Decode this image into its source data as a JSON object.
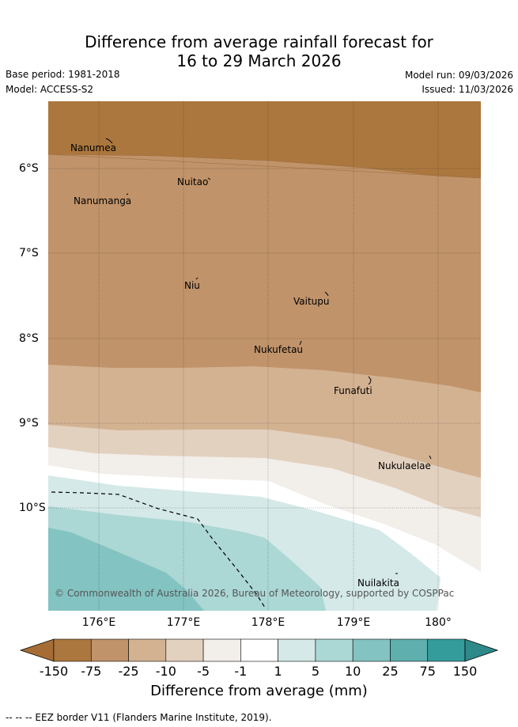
{
  "title_line1": "Difference from average rainfall forecast for",
  "title_line2": "16 to 29 March 2026",
  "base_period": "Base period: 1981-2018",
  "model": "Model: ACCESS-S2",
  "model_run": "Model run: 09/03/2026",
  "issued": "Issued: 11/03/2026",
  "places": {
    "nanumea": "Nanumea",
    "nuitao": "Nuitao",
    "nanumanga": "Nanumanga",
    "niu": "Niu",
    "vaitupu": "Vaitupu",
    "nukufetau": "Nukufetau",
    "funafuti": "Funafuti",
    "nukulaelae": "Nukulaelae",
    "nuilakita": "Nuilakita"
  },
  "lon_ticks": [
    "176°E",
    "177°E",
    "178°E",
    "179°E",
    "180°"
  ],
  "lat_ticks": [
    "6°S",
    "7°S",
    "8°S",
    "9°S",
    "10°S"
  ],
  "copyright": "© Commonwealth of Australia 2026, Bureau of Meteorology, supported by COSPPac",
  "colorbar": {
    "ticks": [
      "-150",
      "-75",
      "-25",
      "-10",
      "-5",
      "-1",
      "1",
      "5",
      "10",
      "25",
      "75",
      "150"
    ],
    "colors": [
      "#ab773e",
      "#c0936a",
      "#d3b292",
      "#e3d1bf",
      "#f2eee9",
      "#ffffff",
      "#d4e9e8",
      "#abd7d5",
      "#83c3c2",
      "#5eafae",
      "#349c9b"
    ],
    "under_color": "#a56d35",
    "over_color": "#2e8989",
    "label": "Difference from average (mm)"
  },
  "footer": "--  --  -- EEZ border V11 (Flanders Marine Institute, 2019)."
}
